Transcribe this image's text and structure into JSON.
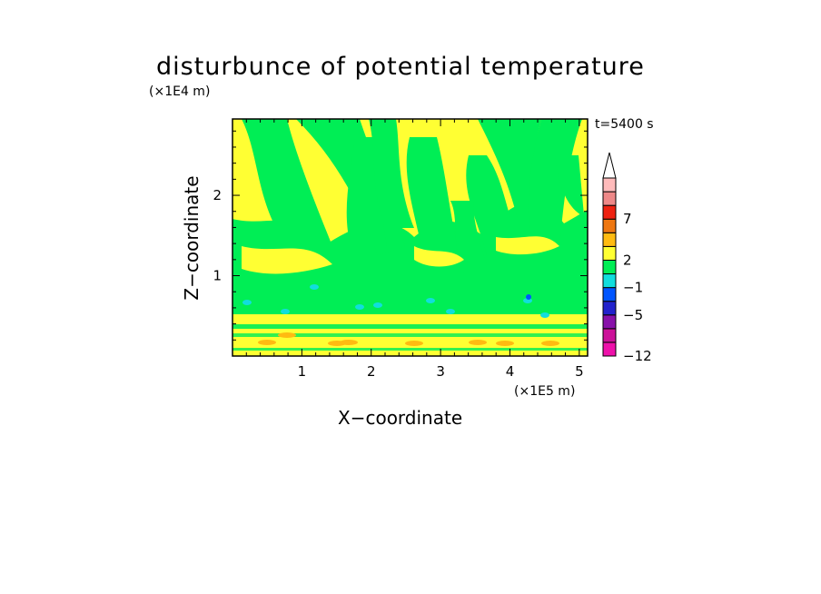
{
  "chart_data": {
    "type": "heatmap",
    "title": "disturbunce of potential temperature",
    "xlabel": "X−coordinate",
    "ylabel": "Z−coordinate",
    "x_unit": "(×1E5 m)",
    "y_unit": "(×1E4 m)",
    "time_label": "t=5400 s",
    "xlim": [
      0,
      5.12
    ],
    "ylim": [
      0,
      2.95
    ],
    "x_ticks": [
      "1",
      "2",
      "3",
      "4",
      "5"
    ],
    "y_ticks": [
      "1",
      "2"
    ],
    "x_tick_values": [
      1,
      2,
      3,
      4,
      5
    ],
    "y_tick_values": [
      1,
      2
    ],
    "colorbar": {
      "levels": [
        {
          "value": -12,
          "color": "#ee11aa"
        },
        {
          "value": null,
          "color": "#cc1199"
        },
        {
          "value": null,
          "color": "#8811aa"
        },
        {
          "value": -5,
          "color": "#2222cc"
        },
        {
          "value": null,
          "color": "#0055ff"
        },
        {
          "value": -1,
          "color": "#11dddd"
        },
        {
          "value": null,
          "color": "#00ee55"
        },
        {
          "value": 2,
          "color": "#ffff33"
        },
        {
          "value": null,
          "color": "#ffbb11"
        },
        {
          "value": null,
          "color": "#ee7711"
        },
        {
          "value": 7,
          "color": "#ee2211"
        },
        {
          "value": null,
          "color": "#ee8888"
        },
        {
          "value": null,
          "color": "#ffbbbb"
        }
      ],
      "labels": [
        "−12",
        "−5",
        "−1",
        "2",
        "7"
      ],
      "extend": "max"
    },
    "field_colors": {
      "background": "#ffff33",
      "green": "#00ee55",
      "cyan": "#11dddd",
      "orange": "#ffbb11",
      "blue": "#0055ff"
    }
  }
}
